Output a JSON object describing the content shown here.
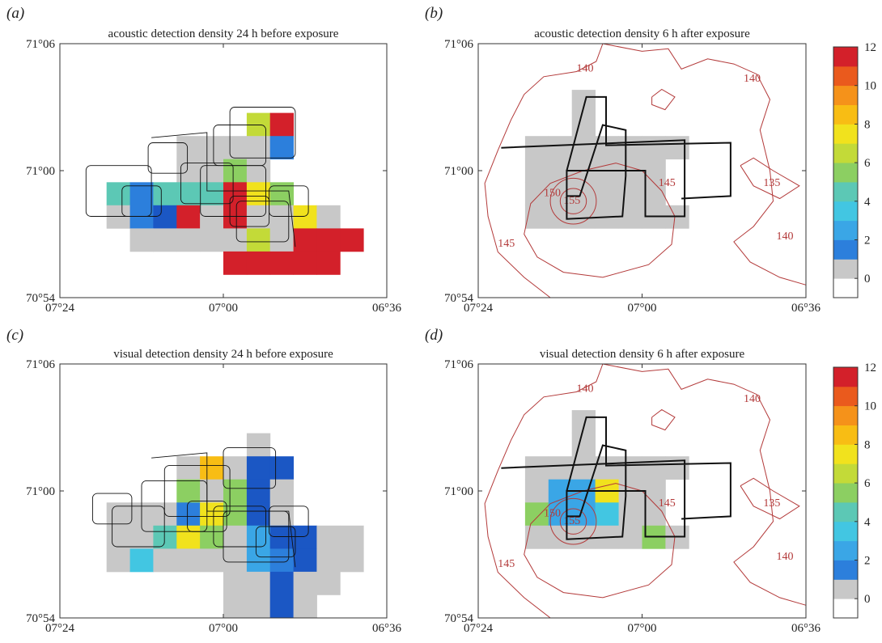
{
  "colorbar": {
    "ticks": [
      12,
      10,
      8,
      6,
      4,
      2,
      0
    ],
    "max": 12,
    "min": -1
  },
  "axes": {
    "x_ticks": [
      "07°24",
      "07°00",
      "06°36"
    ],
    "y_ticks": [
      "71°06",
      "71°00",
      "70°54"
    ]
  },
  "contour_labels": [
    "140",
    "140",
    "140",
    "145",
    "145",
    "150",
    "155",
    "135"
  ],
  "panels": [
    {
      "id": "a",
      "tag": "(a)",
      "title": "acoustic detection density 24 h before exposure"
    },
    {
      "id": "b",
      "tag": "(b)",
      "title": "acoustic detection density 6 h after exposure"
    },
    {
      "id": "c",
      "tag": "(c)",
      "title": "visual detection density 24 h before exposure"
    },
    {
      "id": "d",
      "tag": "(d)",
      "title": "visual detection density 6 h after exposure"
    }
  ],
  "chart_data": [
    {
      "type": "heatmap",
      "panel": "a",
      "title": "acoustic detection density 24 h before exposure",
      "x_ticks": [
        "07°24",
        "07°00",
        "06°36"
      ],
      "y_ticks": [
        "71°06",
        "71°00",
        "70°54"
      ],
      "colorbar_range": [
        -1,
        12
      ],
      "cells": [
        {
          "col": 8,
          "row": 3,
          "value": 7
        },
        {
          "col": 9,
          "row": 3,
          "value": 12
        },
        {
          "col": 5,
          "row": 4,
          "value": 0
        },
        {
          "col": 6,
          "row": 4,
          "value": 0
        },
        {
          "col": 7,
          "row": 4,
          "value": 0
        },
        {
          "col": 8,
          "row": 4,
          "value": 0
        },
        {
          "col": 9,
          "row": 4,
          "value": 2
        },
        {
          "col": 5,
          "row": 5,
          "value": 0
        },
        {
          "col": 6,
          "row": 5,
          "value": 0
        },
        {
          "col": 7,
          "row": 5,
          "value": 6
        },
        {
          "col": 8,
          "row": 5,
          "value": 0
        },
        {
          "col": 2,
          "row": 6,
          "value": 5
        },
        {
          "col": 3,
          "row": 6,
          "value": 2
        },
        {
          "col": 4,
          "row": 6,
          "value": 5
        },
        {
          "col": 5,
          "row": 6,
          "value": 5
        },
        {
          "col": 6,
          "row": 6,
          "value": 5
        },
        {
          "col": 7,
          "row": 6,
          "value": 12
        },
        {
          "col": 8,
          "row": 6,
          "value": 8
        },
        {
          "col": 9,
          "row": 6,
          "value": 6
        },
        {
          "col": 2,
          "row": 7,
          "value": 0
        },
        {
          "col": 3,
          "row": 7,
          "value": 2
        },
        {
          "col": 4,
          "row": 7,
          "value": 1
        },
        {
          "col": 5,
          "row": 7,
          "value": 12
        },
        {
          "col": 6,
          "row": 7,
          "value": 0
        },
        {
          "col": 7,
          "row": 7,
          "value": 12
        },
        {
          "col": 8,
          "row": 7,
          "value": 0
        },
        {
          "col": 9,
          "row": 7,
          "value": 0
        },
        {
          "col": 10,
          "row": 7,
          "value": 8
        },
        {
          "col": 11,
          "row": 7,
          "value": 0
        },
        {
          "col": 3,
          "row": 8,
          "value": 0
        },
        {
          "col": 4,
          "row": 8,
          "value": 0
        },
        {
          "col": 5,
          "row": 8,
          "value": 0
        },
        {
          "col": 6,
          "row": 8,
          "value": 0
        },
        {
          "col": 7,
          "row": 8,
          "value": 0
        },
        {
          "col": 8,
          "row": 8,
          "value": 7
        },
        {
          "col": 9,
          "row": 8,
          "value": 0
        },
        {
          "col": 10,
          "row": 8,
          "value": 12
        },
        {
          "col": 11,
          "row": 8,
          "value": 12
        },
        {
          "col": 12,
          "row": 8,
          "value": 12
        },
        {
          "col": 7,
          "row": 9,
          "value": 12
        },
        {
          "col": 8,
          "row": 9,
          "value": 12
        },
        {
          "col": 9,
          "row": 9,
          "value": 12
        },
        {
          "col": 10,
          "row": 9,
          "value": 12
        },
        {
          "col": 11,
          "row": 9,
          "value": 12
        }
      ]
    },
    {
      "type": "heatmap",
      "panel": "b",
      "title": "acoustic detection density 6 h after exposure",
      "x_ticks": [
        "07°24",
        "07°00",
        "06°36"
      ],
      "y_ticks": [
        "71°06",
        "71°00",
        "70°54"
      ],
      "colorbar_range": [
        -1,
        12
      ],
      "cells": [
        {
          "col": 4,
          "row": 2,
          "value": 0
        },
        {
          "col": 4,
          "row": 3,
          "value": 0
        },
        {
          "col": 2,
          "row": 4,
          "value": 0
        },
        {
          "col": 3,
          "row": 4,
          "value": 0
        },
        {
          "col": 4,
          "row": 4,
          "value": 0
        },
        {
          "col": 5,
          "row": 4,
          "value": 0
        },
        {
          "col": 6,
          "row": 4,
          "value": 0
        },
        {
          "col": 7,
          "row": 4,
          "value": 0
        },
        {
          "col": 8,
          "row": 4,
          "value": 0
        },
        {
          "col": 2,
          "row": 5,
          "value": 0
        },
        {
          "col": 3,
          "row": 5,
          "value": 0
        },
        {
          "col": 4,
          "row": 5,
          "value": 0
        },
        {
          "col": 5,
          "row": 5,
          "value": 0
        },
        {
          "col": 6,
          "row": 5,
          "value": 0
        },
        {
          "col": 7,
          "row": 5,
          "value": 0
        },
        {
          "col": 2,
          "row": 6,
          "value": 0
        },
        {
          "col": 3,
          "row": 6,
          "value": 0
        },
        {
          "col": 4,
          "row": 6,
          "value": 0
        },
        {
          "col": 5,
          "row": 6,
          "value": 0
        },
        {
          "col": 6,
          "row": 6,
          "value": 0
        },
        {
          "col": 7,
          "row": 6,
          "value": 0
        },
        {
          "col": 2,
          "row": 7,
          "value": 0
        },
        {
          "col": 3,
          "row": 7,
          "value": 0
        },
        {
          "col": 4,
          "row": 7,
          "value": 0
        },
        {
          "col": 5,
          "row": 7,
          "value": 0
        },
        {
          "col": 6,
          "row": 7,
          "value": 0
        },
        {
          "col": 7,
          "row": 7,
          "value": 0
        },
        {
          "col": 8,
          "row": 7,
          "value": 0
        }
      ]
    },
    {
      "type": "heatmap",
      "panel": "c",
      "title": "visual detection density 24 h before exposure",
      "x_ticks": [
        "07°24",
        "07°00",
        "06°36"
      ],
      "y_ticks": [
        "71°06",
        "71°00",
        "70°54"
      ],
      "colorbar_range": [
        -1,
        12
      ],
      "cells": [
        {
          "col": 8,
          "row": 3,
          "value": 0
        },
        {
          "col": 5,
          "row": 4,
          "value": 0
        },
        {
          "col": 6,
          "row": 4,
          "value": 9
        },
        {
          "col": 7,
          "row": 4,
          "value": 0
        },
        {
          "col": 8,
          "row": 4,
          "value": 1
        },
        {
          "col": 9,
          "row": 4,
          "value": 1
        },
        {
          "col": 5,
          "row": 5,
          "value": 6
        },
        {
          "col": 6,
          "row": 5,
          "value": 0
        },
        {
          "col": 7,
          "row": 5,
          "value": 6
        },
        {
          "col": 8,
          "row": 5,
          "value": 1
        },
        {
          "col": 9,
          "row": 5,
          "value": 0
        },
        {
          "col": 2,
          "row": 6,
          "value": 0
        },
        {
          "col": 3,
          "row": 6,
          "value": 0
        },
        {
          "col": 4,
          "row": 6,
          "value": 0
        },
        {
          "col": 5,
          "row": 6,
          "value": 2
        },
        {
          "col": 6,
          "row": 6,
          "value": 8
        },
        {
          "col": 7,
          "row": 6,
          "value": 6
        },
        {
          "col": 8,
          "row": 6,
          "value": 1
        },
        {
          "col": 9,
          "row": 6,
          "value": 0
        },
        {
          "col": 2,
          "row": 7,
          "value": 0
        },
        {
          "col": 3,
          "row": 7,
          "value": 0
        },
        {
          "col": 4,
          "row": 7,
          "value": 5
        },
        {
          "col": 5,
          "row": 7,
          "value": 8
        },
        {
          "col": 6,
          "row": 7,
          "value": 6
        },
        {
          "col": 7,
          "row": 7,
          "value": 0
        },
        {
          "col": 8,
          "row": 7,
          "value": 3
        },
        {
          "col": 9,
          "row": 7,
          "value": 1
        },
        {
          "col": 10,
          "row": 7,
          "value": 1
        },
        {
          "col": 11,
          "row": 7,
          "value": 0
        },
        {
          "col": 12,
          "row": 7,
          "value": 0
        },
        {
          "col": 2,
          "row": 8,
          "value": 0
        },
        {
          "col": 3,
          "row": 8,
          "value": 4
        },
        {
          "col": 4,
          "row": 8,
          "value": 0
        },
        {
          "col": 5,
          "row": 8,
          "value": 0
        },
        {
          "col": 6,
          "row": 8,
          "value": 0
        },
        {
          "col": 7,
          "row": 8,
          "value": 0
        },
        {
          "col": 8,
          "row": 8,
          "value": 3
        },
        {
          "col": 9,
          "row": 8,
          "value": 2
        },
        {
          "col": 10,
          "row": 8,
          "value": 1
        },
        {
          "col": 11,
          "row": 8,
          "value": 0
        },
        {
          "col": 12,
          "row": 8,
          "value": 0
        },
        {
          "col": 7,
          "row": 9,
          "value": 0
        },
        {
          "col": 8,
          "row": 9,
          "value": 0
        },
        {
          "col": 9,
          "row": 9,
          "value": 1
        },
        {
          "col": 10,
          "row": 9,
          "value": 0
        },
        {
          "col": 11,
          "row": 9,
          "value": 0
        },
        {
          "col": 7,
          "row": 10,
          "value": 0
        },
        {
          "col": 8,
          "row": 10,
          "value": 0
        },
        {
          "col": 9,
          "row": 10,
          "value": 1
        },
        {
          "col": 10,
          "row": 10,
          "value": 0
        }
      ]
    },
    {
      "type": "heatmap",
      "panel": "d",
      "title": "visual detection density 6 h after exposure",
      "x_ticks": [
        "07°24",
        "07°00",
        "06°36"
      ],
      "y_ticks": [
        "71°06",
        "71°00",
        "70°54"
      ],
      "colorbar_range": [
        -1,
        12
      ],
      "cells": [
        {
          "col": 4,
          "row": 2,
          "value": 0
        },
        {
          "col": 4,
          "row": 3,
          "value": 0
        },
        {
          "col": 2,
          "row": 4,
          "value": 0
        },
        {
          "col": 3,
          "row": 4,
          "value": 0
        },
        {
          "col": 4,
          "row": 4,
          "value": 0
        },
        {
          "col": 5,
          "row": 4,
          "value": 0
        },
        {
          "col": 6,
          "row": 4,
          "value": 0
        },
        {
          "col": 7,
          "row": 4,
          "value": 0
        },
        {
          "col": 8,
          "row": 4,
          "value": 0
        },
        {
          "col": 2,
          "row": 5,
          "value": 0
        },
        {
          "col": 3,
          "row": 5,
          "value": 3
        },
        {
          "col": 4,
          "row": 5,
          "value": 3
        },
        {
          "col": 5,
          "row": 5,
          "value": 8
        },
        {
          "col": 6,
          "row": 5,
          "value": 0
        },
        {
          "col": 7,
          "row": 5,
          "value": 0
        },
        {
          "col": 2,
          "row": 6,
          "value": 6
        },
        {
          "col": 3,
          "row": 6,
          "value": 3
        },
        {
          "col": 4,
          "row": 6,
          "value": 3
        },
        {
          "col": 5,
          "row": 6,
          "value": 4
        },
        {
          "col": 6,
          "row": 6,
          "value": 0
        },
        {
          "col": 7,
          "row": 6,
          "value": 0
        },
        {
          "col": 2,
          "row": 7,
          "value": 0
        },
        {
          "col": 3,
          "row": 7,
          "value": 0
        },
        {
          "col": 4,
          "row": 7,
          "value": 0
        },
        {
          "col": 5,
          "row": 7,
          "value": 0
        },
        {
          "col": 6,
          "row": 7,
          "value": 0
        },
        {
          "col": 7,
          "row": 7,
          "value": 6
        },
        {
          "col": 8,
          "row": 7,
          "value": 0
        }
      ]
    }
  ]
}
